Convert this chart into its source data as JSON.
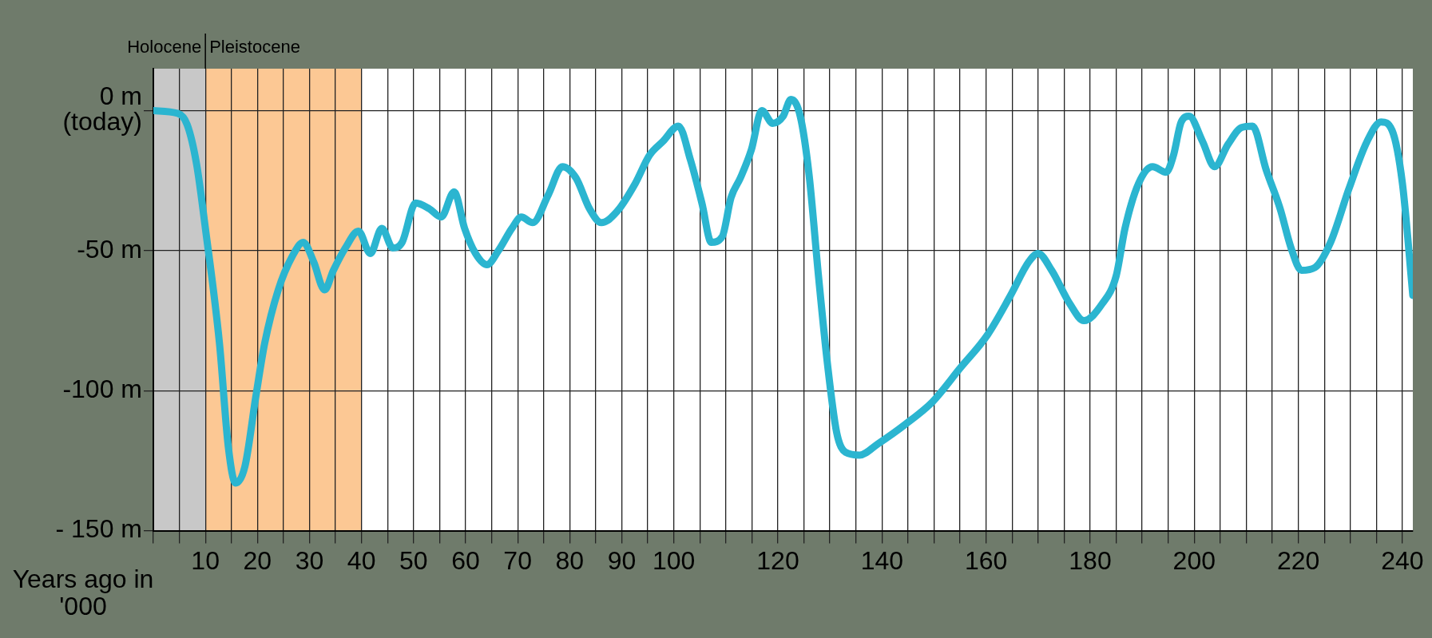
{
  "chart_data": {
    "type": "line",
    "xlabel": "Years ago in '000",
    "xlim": [
      0,
      242
    ],
    "ylim": [
      -150,
      15
    ],
    "xticks": [
      {
        "value": 0,
        "label": null
      },
      {
        "value": 5,
        "label": null
      },
      10,
      {
        "value": 15,
        "label": null
      },
      20,
      {
        "value": 25,
        "label": null
      },
      30,
      {
        "value": 35,
        "label": null
      },
      40,
      {
        "value": 45,
        "label": null
      },
      50,
      {
        "value": 55,
        "label": null
      },
      60,
      {
        "value": 65,
        "label": null
      },
      70,
      {
        "value": 75,
        "label": null
      },
      80,
      {
        "value": 85,
        "label": null
      },
      90,
      {
        "value": 95,
        "label": null
      },
      100,
      {
        "value": 105,
        "label": null
      },
      {
        "value": 110,
        "label": null
      },
      {
        "value": 115,
        "label": null
      },
      120,
      {
        "value": 125,
        "label": null
      },
      {
        "value": 130,
        "label": null
      },
      {
        "value": 135,
        "label": null
      },
      140,
      {
        "value": 145,
        "label": null
      },
      {
        "value": 150,
        "label": null
      },
      {
        "value": 155,
        "label": null
      },
      160,
      {
        "value": 165,
        "label": null
      },
      {
        "value": 170,
        "label": null
      },
      {
        "value": 175,
        "label": null
      },
      180,
      {
        "value": 185,
        "label": null
      },
      {
        "value": 190,
        "label": null
      },
      {
        "value": 195,
        "label": null
      },
      200,
      {
        "value": 205,
        "label": null
      },
      {
        "value": 210,
        "label": null
      },
      {
        "value": 215,
        "label": null
      },
      220,
      {
        "value": 225,
        "label": null
      },
      {
        "value": 230,
        "label": null
      },
      {
        "value": 235,
        "label": null
      },
      240
    ],
    "yticks": [
      {
        "value": 0,
        "label": "0 m\n(today)"
      },
      {
        "value": -50,
        "label": "-50 m"
      },
      {
        "value": -100,
        "label": "-100 m"
      },
      {
        "value": -150,
        "label": "- 150 m"
      }
    ],
    "grid": true,
    "bands": [
      {
        "axis": "x",
        "from": 0,
        "to": 10,
        "label": "Holocene",
        "color": "#c8c8c8"
      },
      {
        "axis": "x",
        "from": 10,
        "to": 40,
        "label": "Pleistocene",
        "color": "#fcc894"
      }
    ],
    "series": [
      {
        "color": "#2bb5d0",
        "x": [
          0,
          4.7,
          6.5,
          8.3,
          10,
          12.7,
          14.4,
          15.8,
          17.6,
          19.7,
          21.4,
          24,
          26.7,
          28.8,
          30.8,
          32.9,
          34.6,
          36.9,
          39.4,
          41.7,
          43.9,
          46,
          47.8,
          50.4,
          53,
          55.3,
          57.8,
          59.8,
          61.9,
          64.1,
          66.3,
          68.9,
          70.7,
          72.9,
          75.9,
          78.6,
          81.2,
          83.8,
          86.1,
          89.1,
          92.6,
          95.3,
          97.9,
          100.9,
          103.2,
          105.4,
          107.2,
          109.3,
          111,
          112.8,
          114.9,
          116.9,
          119,
          121,
          122.5,
          124.3,
          126,
          127.8,
          129.5,
          131.3,
          133,
          135.7,
          139.2,
          144.5,
          149.7,
          155,
          160.3,
          164.7,
          168.2,
          170,
          172.6,
          176.1,
          178.8,
          182.3,
          185,
          186.7,
          189.3,
          192,
          194.6,
          196,
          197.5,
          199,
          201.6,
          203.9,
          206.5,
          209.1,
          211.2,
          213.8,
          216.5,
          218.6,
          220.6,
          223.2,
          226.2,
          229.7,
          233.2,
          235.9,
          238,
          240,
          242
        ],
        "values": [
          0,
          -1,
          -5,
          -19,
          -42,
          -83,
          -120,
          -133,
          -127,
          -102,
          -83,
          -64,
          -52,
          -47,
          -54,
          -64,
          -57,
          -49,
          -43,
          -51,
          -42,
          -49,
          -47,
          -33,
          -35,
          -38,
          -29,
          -42,
          -51,
          -55,
          -50,
          -42,
          -38,
          -40,
          -30,
          -20,
          -24,
          -35,
          -40,
          -36,
          -26,
          -16,
          -11,
          -5.5,
          -17.6,
          -33,
          -47,
          -45,
          -31,
          -24,
          -14,
          0,
          -4.5,
          -2,
          4,
          -2,
          -23,
          -59,
          -90,
          -115,
          -122,
          -123,
          -119,
          -112,
          -104,
          -92,
          -80,
          -66,
          -54,
          -51,
          -57,
          -69,
          -75,
          -69,
          -59,
          -42,
          -26,
          -20,
          -22,
          -16,
          -4,
          -2,
          -11,
          -20,
          -12,
          -6,
          -5.5,
          -21,
          -35,
          -49,
          -57,
          -56,
          -47,
          -28,
          -11,
          -4,
          -7,
          -26,
          -66
        ]
      }
    ]
  }
}
